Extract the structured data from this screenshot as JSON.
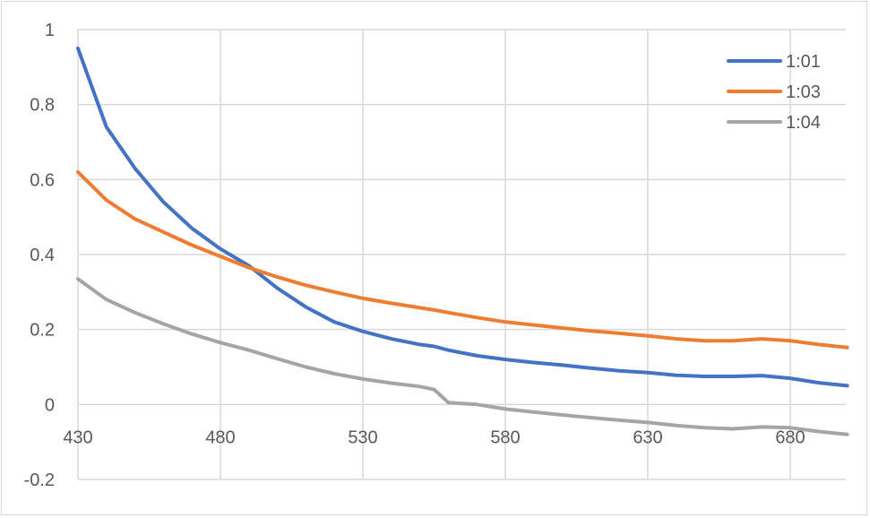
{
  "chart_data": {
    "type": "line",
    "title": "",
    "xlabel": "",
    "ylabel": "",
    "xlim": [
      430,
      700
    ],
    "ylim": [
      -0.2,
      1
    ],
    "grid": true,
    "legend_position": "top-right-inside",
    "x_ticks": [
      "430",
      "480",
      "530",
      "580",
      "630",
      "680"
    ],
    "y_ticks": [
      "1",
      "0.8",
      "0.6",
      "0.4",
      "0.2",
      "0",
      "-0.2"
    ],
    "x": [
      430,
      440,
      450,
      460,
      470,
      480,
      490,
      500,
      510,
      520,
      530,
      540,
      550,
      555,
      560,
      570,
      580,
      590,
      600,
      610,
      620,
      630,
      640,
      650,
      660,
      670,
      680,
      690,
      700
    ],
    "series": [
      {
        "name": "1:01",
        "color": "#4472C4",
        "values": [
          0.95,
          0.74,
          0.63,
          0.54,
          0.47,
          0.415,
          0.37,
          0.31,
          0.26,
          0.22,
          0.195,
          0.175,
          0.16,
          0.155,
          0.145,
          0.13,
          0.12,
          0.112,
          0.105,
          0.097,
          0.09,
          0.085,
          0.078,
          0.075,
          0.075,
          0.077,
          0.07,
          0.058,
          0.05
        ]
      },
      {
        "name": "1:03",
        "color": "#ED7D31",
        "values": [
          0.62,
          0.545,
          0.495,
          0.46,
          0.425,
          0.395,
          0.365,
          0.34,
          0.318,
          0.3,
          0.283,
          0.27,
          0.258,
          0.252,
          0.245,
          0.232,
          0.22,
          0.212,
          0.204,
          0.196,
          0.19,
          0.183,
          0.175,
          0.17,
          0.17,
          0.175,
          0.17,
          0.16,
          0.152
        ]
      },
      {
        "name": "1:04",
        "color": "#A5A5A5",
        "values": [
          0.335,
          0.28,
          0.245,
          0.215,
          0.188,
          0.165,
          0.145,
          0.122,
          0.1,
          0.082,
          0.068,
          0.057,
          0.048,
          0.04,
          0.005,
          0.0,
          -0.012,
          -0.02,
          -0.028,
          -0.035,
          -0.042,
          -0.048,
          -0.056,
          -0.062,
          -0.065,
          -0.06,
          -0.062,
          -0.072,
          -0.08
        ]
      }
    ]
  }
}
